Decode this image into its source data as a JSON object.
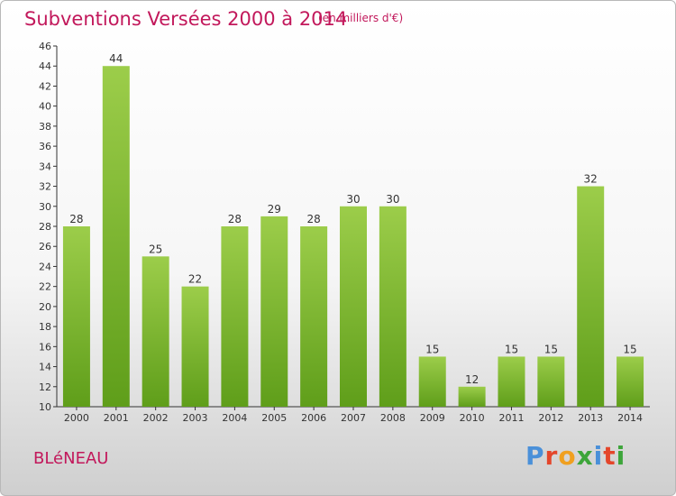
{
  "header": {
    "title": "Subventions Versées 2000 à 2014",
    "subtitle": "(en milliers d'€)"
  },
  "footer": {
    "commune": "BLéNEAU",
    "logo_letters": [
      "P",
      "r",
      "o",
      "x",
      "i",
      "t",
      "i"
    ]
  },
  "colors": {
    "title": "#c2185b",
    "bar_top": "#9ccd4a",
    "bar_bottom": "#5f9e1a",
    "logo": [
      "#4a90d9",
      "#e4462b",
      "#f0a020",
      "#3da53a",
      "#4a90d9",
      "#e4462b",
      "#3da53a"
    ]
  },
  "chart_data": {
    "type": "bar",
    "categories": [
      "2000",
      "2001",
      "2002",
      "2003",
      "2004",
      "2005",
      "2006",
      "2007",
      "2008",
      "2009",
      "2010",
      "2011",
      "2012",
      "2013",
      "2014"
    ],
    "values": [
      28,
      44,
      25,
      22,
      28,
      29,
      28,
      30,
      30,
      15,
      12,
      15,
      15,
      32,
      15
    ],
    "ylim": [
      10,
      46
    ],
    "yticks": [
      10,
      12,
      14,
      16,
      18,
      20,
      22,
      24,
      26,
      28,
      30,
      32,
      34,
      36,
      38,
      40,
      42,
      44,
      46
    ],
    "grid": false,
    "data_labels": true
  }
}
